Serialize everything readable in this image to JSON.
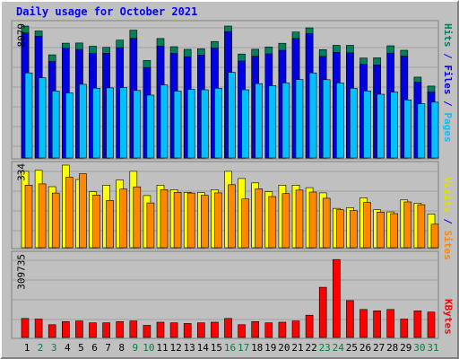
{
  "title": "Daily usage for October 2021",
  "colors": {
    "hits": "#00805c",
    "files": "#0000e0",
    "pages": "#00c0ff",
    "visits": "#ffff00",
    "sites": "#ff8800",
    "kbytes": "#ff0000",
    "weekend_label": "#008040",
    "weekday_label": "#000000",
    "separator": "#0000ff",
    "grid": "#808080"
  },
  "chart_data": [
    {
      "type": "bar",
      "panel": "hits-files-pages",
      "categories": [
        "1",
        "2",
        "3",
        "4",
        "5",
        "6",
        "7",
        "8",
        "9",
        "10",
        "11",
        "12",
        "13",
        "14",
        "15",
        "16",
        "17",
        "18",
        "19",
        "20",
        "21",
        "22",
        "23",
        "24",
        "25",
        "26",
        "27",
        "28",
        "29",
        "30",
        "31"
      ],
      "ylim": [
        0,
        8079
      ],
      "tick_label": "8079",
      "series": [
        {
          "name": "Hits",
          "values": [
            8079,
            7778,
            6313,
            7028,
            7043,
            6840,
            6775,
            7218,
            7826,
            5971,
            7316,
            6817,
            6648,
            6683,
            7135,
            8079,
            6364,
            6653,
            6801,
            7025,
            7710,
            7970,
            6634,
            6898,
            6898,
            6119,
            6131,
            6868,
            6595,
            4954,
            4403
          ]
        },
        {
          "name": "Files",
          "values": [
            7648,
            7450,
            5910,
            6717,
            6646,
            6398,
            6415,
            6757,
            7327,
            5542,
            6846,
            6414,
            6202,
            6305,
            6733,
            7740,
            5936,
            6227,
            6378,
            6592,
            7320,
            7610,
            6224,
            6461,
            6434,
            5737,
            5699,
            6417,
            6233,
            4645,
            4038
          ]
        },
        {
          "name": "Pages",
          "values": [
            5212,
            4913,
            4099,
            3987,
            4511,
            4268,
            4291,
            4308,
            4134,
            3848,
            4476,
            4099,
            4198,
            4179,
            4272,
            5242,
            4178,
            4552,
            4423,
            4594,
            4802,
            5212,
            4792,
            4596,
            4270,
            4104,
            3904,
            4035,
            3556,
            3317,
            3416
          ]
        }
      ]
    },
    {
      "type": "bar",
      "panel": "visits-sites",
      "categories": [
        "1",
        "2",
        "3",
        "4",
        "5",
        "6",
        "7",
        "8",
        "9",
        "10",
        "11",
        "12",
        "13",
        "14",
        "15",
        "16",
        "17",
        "18",
        "19",
        "20",
        "21",
        "22",
        "23",
        "24",
        "25",
        "26",
        "27",
        "28",
        "29",
        "30",
        "31"
      ],
      "ylim": [
        0,
        334
      ],
      "tick_label": "334",
      "series": [
        {
          "name": "Visits",
          "values": [
            309,
            313,
            247,
            334,
            276,
            227,
            253,
            274,
            309,
            211,
            253,
            235,
            224,
            223,
            235,
            309,
            280,
            262,
            227,
            253,
            253,
            243,
            222,
            159,
            162,
            202,
            154,
            145,
            193,
            180,
            136
          ]
        },
        {
          "name": "Sites",
          "values": [
            253,
            258,
            221,
            285,
            299,
            213,
            191,
            237,
            246,
            181,
            235,
            224,
            221,
            212,
            222,
            255,
            197,
            238,
            207,
            219,
            233,
            225,
            200,
            154,
            150,
            183,
            144,
            138,
            185,
            174,
            95
          ]
        }
      ]
    },
    {
      "type": "bar",
      "panel": "kbytes",
      "categories": [
        "1",
        "2",
        "3",
        "4",
        "5",
        "6",
        "7",
        "8",
        "9",
        "10",
        "11",
        "12",
        "13",
        "14",
        "15",
        "16",
        "17",
        "18",
        "19",
        "20",
        "21",
        "22",
        "23",
        "24",
        "25",
        "26",
        "27",
        "28",
        "29",
        "30",
        "31"
      ],
      "ylim": [
        0,
        309735
      ],
      "tick_label": "309735",
      "series": [
        {
          "name": "KBytes",
          "values": [
            71430,
            69020,
            47690,
            59600,
            61990,
            54840,
            54840,
            59600,
            61990,
            45300,
            57220,
            54840,
            52450,
            54840,
            57220,
            71430,
            47690,
            59600,
            54840,
            57220,
            61990,
            83360,
            188240,
            292320,
            138280,
            104900,
            100140,
            104900,
            69020,
            100140,
            95370
          ]
        }
      ]
    }
  ],
  "x_labels": [
    {
      "day": "1",
      "weekend": false
    },
    {
      "day": "2",
      "weekend": true
    },
    {
      "day": "3",
      "weekend": true
    },
    {
      "day": "4",
      "weekend": false
    },
    {
      "day": "5",
      "weekend": false
    },
    {
      "day": "6",
      "weekend": false
    },
    {
      "day": "7",
      "weekend": false
    },
    {
      "day": "8",
      "weekend": false
    },
    {
      "day": "9",
      "weekend": true
    },
    {
      "day": "10",
      "weekend": true
    },
    {
      "day": "11",
      "weekend": false
    },
    {
      "day": "12",
      "weekend": false
    },
    {
      "day": "13",
      "weekend": false
    },
    {
      "day": "14",
      "weekend": false
    },
    {
      "day": "15",
      "weekend": false
    },
    {
      "day": "16",
      "weekend": true
    },
    {
      "day": "17",
      "weekend": true
    },
    {
      "day": "18",
      "weekend": false
    },
    {
      "day": "19",
      "weekend": false
    },
    {
      "day": "20",
      "weekend": false
    },
    {
      "day": "21",
      "weekend": false
    },
    {
      "day": "22",
      "weekend": false
    },
    {
      "day": "23",
      "weekend": true
    },
    {
      "day": "24",
      "weekend": true
    },
    {
      "day": "25",
      "weekend": false
    },
    {
      "day": "26",
      "weekend": false
    },
    {
      "day": "27",
      "weekend": false
    },
    {
      "day": "28",
      "weekend": false
    },
    {
      "day": "29",
      "weekend": false
    },
    {
      "day": "30",
      "weekend": true
    },
    {
      "day": "31",
      "weekend": true
    }
  ],
  "legends": {
    "top": {
      "pages": "Pages",
      "sep1": " / ",
      "files": "Files",
      "sep2": " / ",
      "hits": "Hits"
    },
    "middle": {
      "sites": "Sites",
      "sep": " / ",
      "visits": "Visits"
    },
    "bottom": {
      "kbytes": "KBytes"
    }
  }
}
